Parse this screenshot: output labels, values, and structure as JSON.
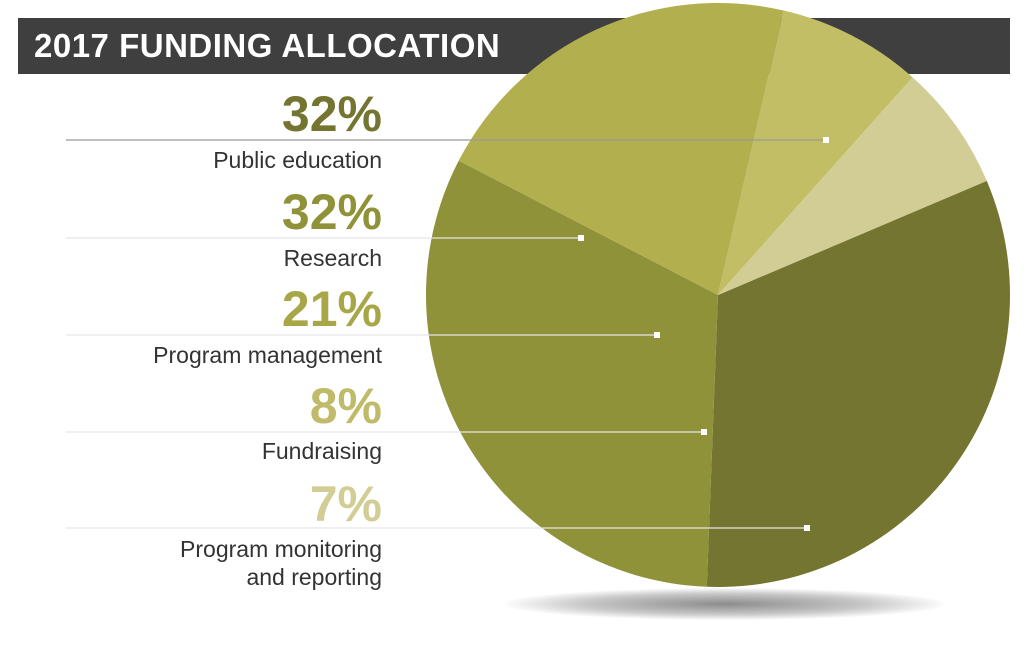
{
  "chart_data": {
    "type": "pie",
    "title": "2017 FUNDING ALLOCATION",
    "slices": [
      {
        "label": "Public education",
        "line1": "Public education",
        "line2": "",
        "value": 32,
        "percent_text": "32%",
        "color": "#747530"
      },
      {
        "label": "Research",
        "line1": "Research",
        "line2": "",
        "value": 32,
        "percent_text": "32%",
        "color": "#8f9238"
      },
      {
        "label": "Program management",
        "line1": "Program management",
        "line2": "",
        "value": 21,
        "percent_text": "21%",
        "color": "#b2b04e"
      },
      {
        "label": "Fundraising",
        "line1": "Fundraising",
        "line2": "",
        "value": 8,
        "percent_text": "8%",
        "color": "#c2be66"
      },
      {
        "label": "Program monitoring and reporting",
        "line1": "Program monitoring",
        "line2": "and reporting",
        "value": 7,
        "percent_text": "7%",
        "color": "#d1cd94"
      }
    ],
    "percent_colors": [
      "#747530",
      "#8f9238",
      "#a8a748",
      "#bfbb6a",
      "#d1cd94"
    ]
  }
}
